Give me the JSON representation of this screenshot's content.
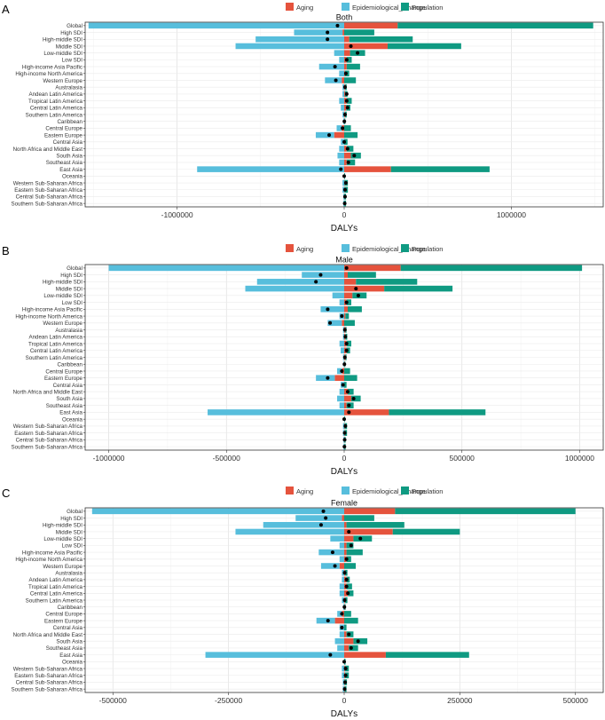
{
  "figure": {
    "legend_title_hidden": true
  },
  "colors": {
    "Aging": "#e5533d",
    "Epidemiological_Change": "#57bedc",
    "Population": "#0f9a82",
    "panel_bg": "#ffffff",
    "grid": "#ebebeb"
  },
  "regions": [
    "Global",
    "High SDI",
    "High-middle SDI",
    "Middle SDI",
    "Low-middle SDI",
    "Low SDI",
    "High-income Asia Pacific",
    "High-income North America",
    "Western Europe",
    "Australasia",
    "Andean Latin America",
    "Tropical Latin America",
    "Central Latin America",
    "Southern Latin America",
    "Caribbean",
    "Central Europe",
    "Eastern Europe",
    "Central Asia",
    "North Africa and Middle East",
    "South Asia",
    "Southeast Asia",
    "East Asia",
    "Oceania",
    "Western Sub-Saharan Africa",
    "Eastern Sub-Saharan Africa",
    "Central Sub-Saharan Africa",
    "Southern Sub-Saharan Africa"
  ],
  "chart_data": [
    {
      "panel_label": "A",
      "type": "bar",
      "orientation": "horizontal-stacked",
      "title": "Both",
      "xlabel": "DALYs",
      "xlim": [
        -1550000,
        1550000
      ],
      "xticks": [
        -1000000,
        0,
        1000000
      ],
      "xtick_labels": [
        "-1000000",
        "0",
        "1000000"
      ],
      "legend": [
        "Aging",
        "Epidemiological_Change",
        "Population"
      ],
      "legend_position": "top",
      "series": [
        {
          "name": "Aging",
          "values": [
            320000,
            -10000,
            30000,
            260000,
            35000,
            15000,
            15000,
            5000,
            -15000,
            5000,
            5000,
            15000,
            12000,
            5000,
            2000,
            -15000,
            -60000,
            0,
            15000,
            40000,
            15000,
            280000,
            0,
            2000,
            2000,
            1000,
            1000
          ]
        },
        {
          "name": "Epidemiological_Change",
          "values": [
            -1530000,
            -290000,
            -530000,
            -650000,
            -60000,
            -30000,
            -150000,
            -30000,
            -100000,
            -10000,
            -10000,
            -30000,
            -20000,
            -10000,
            -5000,
            -30000,
            -110000,
            -20000,
            -30000,
            -40000,
            -30000,
            -880000,
            0,
            -10000,
            -10000,
            -5000,
            -5000
          ]
        },
        {
          "name": "Population",
          "values": [
            1170000,
            180000,
            380000,
            440000,
            90000,
            30000,
            80000,
            25000,
            70000,
            10000,
            15000,
            30000,
            25000,
            10000,
            5000,
            40000,
            80000,
            20000,
            40000,
            60000,
            50000,
            590000,
            5000,
            20000,
            20000,
            10000,
            10000
          ]
        }
      ],
      "points": [
        -40000,
        -100000,
        -100000,
        40000,
        80000,
        15000,
        -55000,
        10000,
        -50000,
        5000,
        15000,
        15000,
        20000,
        5000,
        1000,
        -10000,
        -90000,
        0,
        20000,
        60000,
        25000,
        -20000,
        0,
        10000,
        5000,
        5000,
        3000
      ]
    },
    {
      "panel_label": "B",
      "type": "bar",
      "orientation": "horizontal-stacked",
      "title": "Male",
      "xlabel": "DALYs",
      "xlim": [
        -1100000,
        1100000
      ],
      "xticks": [
        -1000000,
        -500000,
        0,
        500000,
        1000000
      ],
      "xtick_labels": [
        "-1000000",
        "-500000",
        "0",
        "500000",
        "1000000"
      ],
      "legend": [
        "Aging",
        "Epidemiological_Change",
        "Population"
      ],
      "legend_position": "top",
      "series": [
        {
          "name": "Aging",
          "values": [
            240000,
            15000,
            50000,
            170000,
            35000,
            10000,
            15000,
            5000,
            -10000,
            5000,
            5000,
            10000,
            10000,
            5000,
            2000,
            -10000,
            -40000,
            0,
            15000,
            30000,
            10000,
            190000,
            0,
            2000,
            2000,
            1000,
            1000
          ]
        },
        {
          "name": "Epidemiological_Change",
          "values": [
            -1000000,
            -180000,
            -370000,
            -420000,
            -50000,
            -20000,
            -100000,
            -20000,
            -60000,
            -5000,
            -5000,
            -20000,
            -15000,
            -5000,
            -3000,
            -20000,
            -80000,
            -15000,
            -20000,
            -30000,
            -20000,
            -580000,
            0,
            -5000,
            -5000,
            -3000,
            -3000
          ]
        },
        {
          "name": "Population",
          "values": [
            770000,
            120000,
            260000,
            290000,
            60000,
            20000,
            60000,
            15000,
            45000,
            5000,
            8000,
            20000,
            15000,
            5000,
            3000,
            25000,
            55000,
            10000,
            25000,
            40000,
            30000,
            410000,
            3000,
            10000,
            10000,
            5000,
            5000
          ]
        }
      ],
      "points": [
        10000,
        -100000,
        -120000,
        50000,
        60000,
        10000,
        -70000,
        -10000,
        -60000,
        3000,
        5000,
        10000,
        10000,
        3000,
        1000,
        -10000,
        -70000,
        -5000,
        15000,
        40000,
        20000,
        20000,
        0,
        5000,
        2000,
        2000,
        1000
      ]
    },
    {
      "panel_label": "C",
      "type": "bar",
      "orientation": "horizontal-stacked",
      "title": "Female",
      "xlabel": "DALYs",
      "xlim": [
        -560000,
        560000
      ],
      "xticks": [
        -500000,
        -250000,
        0,
        250000,
        500000
      ],
      "xtick_labels": [
        "-500000",
        "-250000",
        "0",
        "250000",
        "500000"
      ],
      "legend": [
        "Aging",
        "Epidemiological_Change",
        "Population"
      ],
      "legend_position": "top",
      "series": [
        {
          "name": "Aging",
          "values": [
            110000,
            -5000,
            5000,
            105000,
            20000,
            5000,
            5000,
            5000,
            -10000,
            2000,
            5000,
            5000,
            8000,
            2000,
            1000,
            -5000,
            -20000,
            0,
            5000,
            20000,
            10000,
            90000,
            0,
            2000,
            2000,
            1000,
            1000
          ]
        },
        {
          "name": "Epidemiological_Change",
          "values": [
            -545000,
            -100000,
            -175000,
            -235000,
            -30000,
            -10000,
            -55000,
            -10000,
            -40000,
            -5000,
            -5000,
            -10000,
            -10000,
            -5000,
            -2000,
            -10000,
            -40000,
            -10000,
            -10000,
            -20000,
            -15000,
            -300000,
            0,
            -5000,
            -5000,
            -3000,
            -3000
          ]
        },
        {
          "name": "Population",
          "values": [
            390000,
            65000,
            125000,
            145000,
            40000,
            15000,
            35000,
            10000,
            25000,
            5000,
            7000,
            12000,
            12000,
            5000,
            2000,
            15000,
            30000,
            5000,
            15000,
            30000,
            20000,
            180000,
            3000,
            8000,
            8000,
            5000,
            4000
          ]
        }
      ],
      "points": [
        -45000,
        -40000,
        -50000,
        10000,
        35000,
        15000,
        -25000,
        5000,
        -20000,
        1000,
        5000,
        5000,
        8000,
        1000,
        500,
        -5000,
        -35000,
        -5000,
        10000,
        30000,
        15000,
        -30000,
        0,
        3000,
        3000,
        2000,
        1000
      ]
    }
  ]
}
